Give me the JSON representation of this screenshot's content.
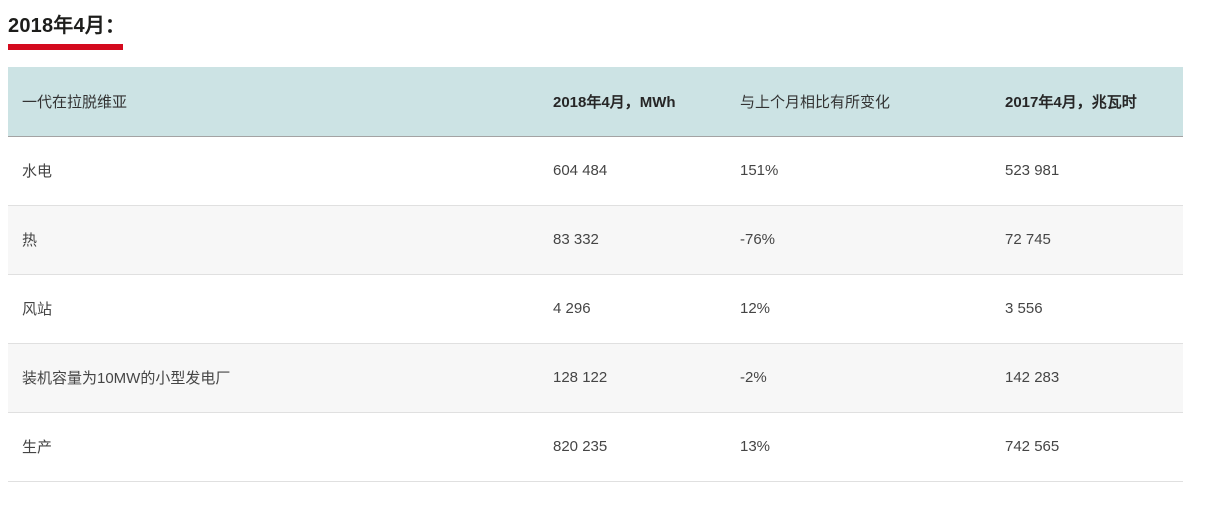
{
  "page": {
    "title": "2018年4月："
  },
  "colors": {
    "accent_red": "#d40a1e",
    "header_bg": "#cce3e4",
    "alt_row_bg": "#f7f7f7",
    "row_border": "#e0e0e0",
    "header_border": "#a3a3a3",
    "body_text": "#454545"
  },
  "table": {
    "columns": [
      {
        "label": "一代在拉脱维亚"
      },
      {
        "label": "2018年4月，MWh"
      },
      {
        "label": "与上个月相比有所变化"
      },
      {
        "label": "2017年4月，兆瓦时"
      }
    ],
    "rows": [
      {
        "name": "水电",
        "mwh_2018": "604 484",
        "change": "151%",
        "mwh_2017": "523 981"
      },
      {
        "name": "热",
        "mwh_2018": "83 332",
        "change": "-76%",
        "mwh_2017": "72 745"
      },
      {
        "name": "风站",
        "mwh_2018": "4 296",
        "change": "12%",
        "mwh_2017": "3 556"
      },
      {
        "name": "装机容量为10MW的小型发电厂",
        "mwh_2018": "128 122",
        "change": "-2%",
        "mwh_2017": "142 283"
      },
      {
        "name": "生产",
        "mwh_2018": "820 235",
        "change": "13%",
        "mwh_2017": "742 565"
      }
    ]
  },
  "chart_data": {
    "type": "table",
    "title": "2018年4月：",
    "columns": [
      "一代在拉脱维亚",
      "2018年4月，MWh",
      "与上个月相比有所变化",
      "2017年4月，兆瓦时"
    ],
    "categories": [
      "水电",
      "热",
      "风站",
      "装机容量为10MW的小型发电厂",
      "生产"
    ],
    "series": [
      {
        "name": "2018年4月，MWh",
        "values": [
          604484,
          83332,
          4296,
          128122,
          820235
        ]
      },
      {
        "name": "与上个月相比有所变化 (%)",
        "values": [
          151,
          -76,
          12,
          -2,
          13
        ]
      },
      {
        "name": "2017年4月，兆瓦时",
        "values": [
          523981,
          72745,
          3556,
          142283,
          742565
        ]
      }
    ],
    "rows_display": [
      [
        "水电",
        "604 484",
        "151%",
        "523 981"
      ],
      [
        "热",
        "83 332",
        "-76%",
        "72 745"
      ],
      [
        "风站",
        "4 296",
        "12%",
        "3 556"
      ],
      [
        "装机容量为10MW的小型发电厂",
        "128 122",
        "-2%",
        "142 283"
      ],
      [
        "生产",
        "820 235",
        "13%",
        "742 565"
      ]
    ]
  }
}
